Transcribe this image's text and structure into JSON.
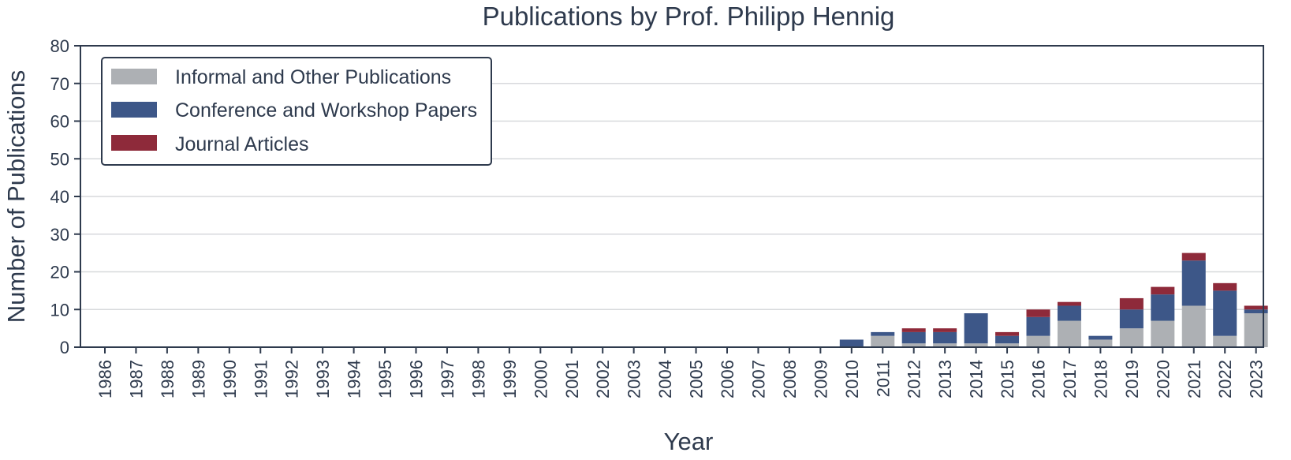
{
  "chart_data": {
    "type": "bar",
    "stacked": true,
    "title": "Publications by Prof. Philipp Hennig",
    "xlabel": "Year",
    "ylabel": "Number of Publications",
    "ylim": [
      0,
      80
    ],
    "yticks": [
      "0",
      "10",
      "20",
      "30",
      "40",
      "50",
      "60",
      "70",
      "80"
    ],
    "grid": true,
    "legend_position": "top-left",
    "categories": [
      "1986",
      "1987",
      "1988",
      "1989",
      "1990",
      "1991",
      "1992",
      "1993",
      "1994",
      "1995",
      "1996",
      "1997",
      "1998",
      "1999",
      "2000",
      "2001",
      "2002",
      "2003",
      "2004",
      "2005",
      "2006",
      "2007",
      "2008",
      "2009",
      "2010",
      "2011",
      "2012",
      "2013",
      "2014",
      "2015",
      "2016",
      "2017",
      "2018",
      "2019",
      "2020",
      "2021",
      "2022",
      "2023"
    ],
    "series": [
      {
        "name": "Informal and Other Publications",
        "color": "#adb0b4",
        "values": [
          0,
          0,
          0,
          0,
          0,
          0,
          0,
          0,
          0,
          0,
          0,
          0,
          0,
          0,
          0,
          0,
          0,
          0,
          0,
          0,
          0,
          0,
          0,
          0,
          0,
          3,
          1,
          1,
          1,
          1,
          3,
          7,
          2,
          5,
          7,
          11,
          3,
          9
        ]
      },
      {
        "name": "Conference and Workshop Papers",
        "color": "#3d5788",
        "values": [
          0,
          0,
          0,
          0,
          0,
          0,
          0,
          0,
          0,
          0,
          0,
          0,
          0,
          0,
          0,
          0,
          0,
          0,
          0,
          0,
          0,
          0,
          0,
          0,
          2,
          1,
          3,
          3,
          8,
          2,
          5,
          4,
          1,
          5,
          7,
          12,
          12,
          1
        ]
      },
      {
        "name": "Journal Articles",
        "color": "#8e2a3a",
        "values": [
          0,
          0,
          0,
          0,
          0,
          0,
          0,
          0,
          0,
          0,
          0,
          0,
          0,
          0,
          0,
          0,
          0,
          0,
          0,
          0,
          0,
          0,
          0,
          0,
          0,
          0,
          1,
          1,
          0,
          1,
          2,
          1,
          0,
          3,
          2,
          2,
          2,
          1
        ]
      }
    ]
  }
}
